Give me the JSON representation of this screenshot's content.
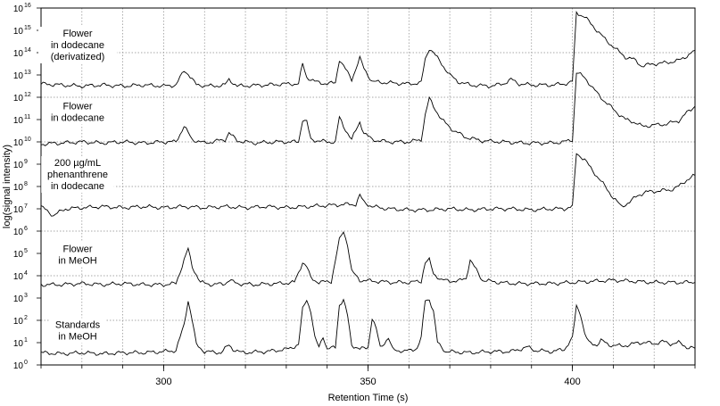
{
  "chart_data": {
    "type": "line",
    "xlabel": "Retention Time (s)",
    "ylabel": "log(signal intensity)",
    "xlim": [
      270,
      430
    ],
    "ylim_exponent": [
      0,
      16
    ],
    "y_scale": "log",
    "grid": true,
    "x_ticks": [
      300,
      350,
      400
    ],
    "y_ticks": [
      {
        "exp": 0,
        "label": "10"
      },
      {
        "exp": 1,
        "label": "10"
      },
      {
        "exp": 2,
        "label": "10"
      },
      {
        "exp": 3,
        "label": "10"
      },
      {
        "exp": 4,
        "label": "10"
      },
      {
        "exp": 5,
        "label": "10"
      },
      {
        "exp": 6,
        "label": "10"
      },
      {
        "exp": 7,
        "label": "10"
      },
      {
        "exp": 8,
        "label": "10"
      },
      {
        "exp": 9,
        "label": "10"
      },
      {
        "exp": 10,
        "label": "10"
      },
      {
        "exp": 11,
        "label": "10"
      },
      {
        "exp": 12,
        "label": "10"
      },
      {
        "exp": 13,
        "label": "10"
      },
      {
        "exp": 14,
        "label": "10"
      },
      {
        "exp": 15,
        "label": "10"
      },
      {
        "exp": 16,
        "label": "10"
      }
    ],
    "series": [
      {
        "name": "Flower in dodecane (derivatized)",
        "label_lines": [
          "Flower",
          "in dodecane",
          "(derivatized)"
        ],
        "label_exp": 14.2,
        "baseline": 12.55,
        "points": [
          [
            270,
            12.6
          ],
          [
            275,
            12.55
          ],
          [
            280,
            12.5
          ],
          [
            285,
            12.55
          ],
          [
            290,
            12.5
          ],
          [
            295,
            12.55
          ],
          [
            300,
            12.5
          ],
          [
            303,
            12.55
          ],
          [
            305,
            13.2
          ],
          [
            306,
            13.05
          ],
          [
            308,
            12.55
          ],
          [
            312,
            12.5
          ],
          [
            315,
            12.55
          ],
          [
            316,
            12.8
          ],
          [
            318,
            12.5
          ],
          [
            325,
            12.55
          ],
          [
            330,
            12.6
          ],
          [
            333,
            12.6
          ],
          [
            334,
            13.5
          ],
          [
            335,
            12.9
          ],
          [
            337,
            12.7
          ],
          [
            340,
            12.6
          ],
          [
            342,
            12.65
          ],
          [
            343,
            13.7
          ],
          [
            344,
            13.4
          ],
          [
            346,
            12.8
          ],
          [
            348,
            13.75
          ],
          [
            349,
            13.3
          ],
          [
            351,
            12.7
          ],
          [
            355,
            12.65
          ],
          [
            360,
            12.6
          ],
          [
            363,
            12.65
          ],
          [
            364,
            13.7
          ],
          [
            365,
            14.2
          ],
          [
            366,
            14.0
          ],
          [
            368,
            13.5
          ],
          [
            370,
            13.0
          ],
          [
            372,
            12.7
          ],
          [
            375,
            12.55
          ],
          [
            380,
            12.5
          ],
          [
            383,
            12.6
          ],
          [
            385,
            12.8
          ],
          [
            387,
            12.6
          ],
          [
            390,
            12.55
          ],
          [
            395,
            12.55
          ],
          [
            398,
            12.6
          ],
          [
            400,
            12.7
          ],
          [
            401,
            15.8
          ],
          [
            403,
            15.6
          ],
          [
            405,
            15.2
          ],
          [
            408,
            14.6
          ],
          [
            411,
            14.1
          ],
          [
            413,
            13.8
          ],
          [
            415,
            13.7
          ],
          [
            417,
            13.4
          ],
          [
            420,
            13.5
          ],
          [
            423,
            13.55
          ],
          [
            426,
            13.65
          ],
          [
            428,
            13.85
          ],
          [
            430,
            14.1
          ]
        ]
      },
      {
        "name": "Flower in dodecane",
        "label_lines": [
          "Flower",
          "in dodecane"
        ],
        "label_exp": 11.2,
        "baseline": 9.9,
        "points": [
          [
            270,
            9.9
          ],
          [
            275,
            9.95
          ],
          [
            280,
            10.0
          ],
          [
            285,
            9.95
          ],
          [
            290,
            10.0
          ],
          [
            295,
            9.95
          ],
          [
            300,
            10.0
          ],
          [
            303,
            10.0
          ],
          [
            305,
            10.7
          ],
          [
            307,
            10.1
          ],
          [
            310,
            9.95
          ],
          [
            315,
            10.1
          ],
          [
            316,
            10.4
          ],
          [
            318,
            10.05
          ],
          [
            322,
            9.95
          ],
          [
            328,
            10.0
          ],
          [
            333,
            10.0
          ],
          [
            334,
            11.0
          ],
          [
            335,
            10.9
          ],
          [
            336,
            10.1
          ],
          [
            340,
            10.0
          ],
          [
            342,
            10.0
          ],
          [
            343,
            11.1
          ],
          [
            344,
            10.7
          ],
          [
            346,
            10.1
          ],
          [
            348,
            10.9
          ],
          [
            349,
            10.4
          ],
          [
            351,
            10.1
          ],
          [
            355,
            10.0
          ],
          [
            360,
            10.0
          ],
          [
            363,
            10.1
          ],
          [
            364,
            11.2
          ],
          [
            365,
            11.95
          ],
          [
            366,
            11.6
          ],
          [
            368,
            11.0
          ],
          [
            371,
            10.5
          ],
          [
            374,
            10.2
          ],
          [
            378,
            10.05
          ],
          [
            383,
            10.0
          ],
          [
            388,
            9.95
          ],
          [
            395,
            9.95
          ],
          [
            398,
            10.0
          ],
          [
            400,
            10.1
          ],
          [
            401,
            13.1
          ],
          [
            403,
            12.9
          ],
          [
            405,
            12.4
          ],
          [
            408,
            11.8
          ],
          [
            411,
            11.3
          ],
          [
            413,
            11.0
          ],
          [
            415,
            10.9
          ],
          [
            417,
            10.7
          ],
          [
            420,
            10.75
          ],
          [
            423,
            10.8
          ],
          [
            426,
            10.95
          ],
          [
            428,
            11.3
          ],
          [
            430,
            11.6
          ]
        ]
      },
      {
        "name": "200 µg/mL phenanthrene in dodecane",
        "label_lines": [
          "200 µg/mL",
          "phenanthrene",
          "in dodecane"
        ],
        "label_exp": 8.4,
        "baseline": 7.1,
        "points": [
          [
            270,
            7.1
          ],
          [
            273,
            6.7
          ],
          [
            276,
            7.0
          ],
          [
            280,
            7.05
          ],
          [
            285,
            7.1
          ],
          [
            290,
            7.05
          ],
          [
            295,
            7.1
          ],
          [
            300,
            7.05
          ],
          [
            305,
            7.1
          ],
          [
            310,
            7.05
          ],
          [
            315,
            7.1
          ],
          [
            320,
            7.05
          ],
          [
            325,
            7.1
          ],
          [
            330,
            7.05
          ],
          [
            335,
            7.1
          ],
          [
            340,
            7.15
          ],
          [
            345,
            7.2
          ],
          [
            347,
            7.2
          ],
          [
            348,
            7.6
          ],
          [
            349,
            7.3
          ],
          [
            351,
            7.1
          ],
          [
            355,
            7.0
          ],
          [
            360,
            6.95
          ],
          [
            365,
            6.95
          ],
          [
            370,
            7.0
          ],
          [
            375,
            6.95
          ],
          [
            380,
            7.0
          ],
          [
            385,
            7.0
          ],
          [
            390,
            6.95
          ],
          [
            395,
            7.0
          ],
          [
            398,
            7.0
          ],
          [
            400,
            7.1
          ],
          [
            401,
            9.5
          ],
          [
            403,
            9.2
          ],
          [
            405,
            8.7
          ],
          [
            408,
            8.0
          ],
          [
            410,
            7.5
          ],
          [
            412,
            7.1
          ],
          [
            414,
            7.3
          ],
          [
            416,
            7.6
          ],
          [
            418,
            7.75
          ],
          [
            421,
            7.8
          ],
          [
            424,
            7.85
          ],
          [
            426,
            8.0
          ],
          [
            428,
            8.3
          ],
          [
            430,
            8.5
          ]
        ]
      },
      {
        "name": "Flower in MeOH",
        "label_lines": [
          "Flower",
          "in MeOH"
        ],
        "label_exp": 4.8,
        "baseline": 3.6,
        "points": [
          [
            270,
            3.6
          ],
          [
            275,
            3.6
          ],
          [
            280,
            3.65
          ],
          [
            285,
            3.6
          ],
          [
            290,
            3.65
          ],
          [
            295,
            3.6
          ],
          [
            300,
            3.6
          ],
          [
            303,
            3.65
          ],
          [
            305,
            4.7
          ],
          [
            306,
            5.2
          ],
          [
            307,
            4.4
          ],
          [
            309,
            3.7
          ],
          [
            312,
            3.6
          ],
          [
            315,
            3.65
          ],
          [
            316,
            3.8
          ],
          [
            318,
            3.65
          ],
          [
            322,
            3.6
          ],
          [
            328,
            3.65
          ],
          [
            332,
            3.7
          ],
          [
            334,
            4.6
          ],
          [
            335,
            4.4
          ],
          [
            336,
            3.9
          ],
          [
            338,
            3.7
          ],
          [
            341,
            3.75
          ],
          [
            343,
            5.6
          ],
          [
            344,
            6.0
          ],
          [
            345,
            5.4
          ],
          [
            346,
            4.2
          ],
          [
            348,
            3.8
          ],
          [
            352,
            3.75
          ],
          [
            356,
            3.7
          ],
          [
            360,
            3.7
          ],
          [
            363,
            3.75
          ],
          [
            364,
            4.6
          ],
          [
            365,
            4.7
          ],
          [
            366,
            4.1
          ],
          [
            368,
            3.8
          ],
          [
            372,
            3.75
          ],
          [
            374,
            3.9
          ],
          [
            375,
            4.7
          ],
          [
            376,
            4.4
          ],
          [
            378,
            3.8
          ],
          [
            382,
            3.7
          ],
          [
            386,
            3.65
          ],
          [
            390,
            3.65
          ],
          [
            395,
            3.65
          ],
          [
            400,
            3.7
          ],
          [
            405,
            3.75
          ],
          [
            410,
            3.8
          ],
          [
            415,
            3.75
          ],
          [
            420,
            3.7
          ],
          [
            425,
            3.7
          ],
          [
            430,
            3.7
          ]
        ]
      },
      {
        "name": "Standards in MeOH",
        "label_lines": [
          "Standards",
          "in MeOH"
        ],
        "label_exp": 1.4,
        "baseline": 0.55,
        "points": [
          [
            270,
            0.55
          ],
          [
            275,
            0.5
          ],
          [
            280,
            0.55
          ],
          [
            285,
            0.5
          ],
          [
            290,
            0.55
          ],
          [
            295,
            0.55
          ],
          [
            300,
            0.6
          ],
          [
            303,
            0.65
          ],
          [
            305,
            1.8
          ],
          [
            306,
            2.9
          ],
          [
            307,
            2.0
          ],
          [
            308,
            0.9
          ],
          [
            310,
            0.6
          ],
          [
            314,
            0.55
          ],
          [
            316,
            0.9
          ],
          [
            317,
            0.7
          ],
          [
            319,
            0.55
          ],
          [
            325,
            0.6
          ],
          [
            330,
            0.7
          ],
          [
            333,
            0.9
          ],
          [
            334,
            2.5
          ],
          [
            335,
            2.95
          ],
          [
            336,
            2.4
          ],
          [
            337,
            1.2
          ],
          [
            338,
            0.8
          ],
          [
            339,
            1.3
          ],
          [
            340,
            0.7
          ],
          [
            342,
            0.8
          ],
          [
            343,
            2.7
          ],
          [
            344,
            2.9
          ],
          [
            345,
            2.2
          ],
          [
            346,
            0.9
          ],
          [
            348,
            0.7
          ],
          [
            350,
            0.8
          ],
          [
            351,
            2.1
          ],
          [
            352,
            1.6
          ],
          [
            353,
            0.8
          ],
          [
            355,
            1.2
          ],
          [
            356,
            0.7
          ],
          [
            359,
            0.6
          ],
          [
            362,
            0.75
          ],
          [
            363,
            1.2
          ],
          [
            364,
            2.9
          ],
          [
            365,
            2.95
          ],
          [
            366,
            2.4
          ],
          [
            367,
            1.0
          ],
          [
            369,
            0.6
          ],
          [
            375,
            0.55
          ],
          [
            380,
            0.6
          ],
          [
            385,
            0.6
          ],
          [
            389,
            0.8
          ],
          [
            391,
            0.65
          ],
          [
            395,
            0.6
          ],
          [
            398,
            0.7
          ],
          [
            400,
            1.2
          ],
          [
            401,
            2.65
          ],
          [
            402,
            2.3
          ],
          [
            403,
            1.4
          ],
          [
            404,
            1.0
          ],
          [
            406,
            0.9
          ],
          [
            407,
            1.1
          ],
          [
            409,
            0.9
          ],
          [
            412,
            0.85
          ],
          [
            414,
            0.9
          ],
          [
            416,
            1.0
          ],
          [
            418,
            1.0
          ],
          [
            420,
            0.95
          ],
          [
            422,
            1.05
          ],
          [
            424,
            0.95
          ],
          [
            426,
            1.0
          ],
          [
            428,
            0.8
          ],
          [
            430,
            0.75
          ]
        ]
      }
    ]
  }
}
